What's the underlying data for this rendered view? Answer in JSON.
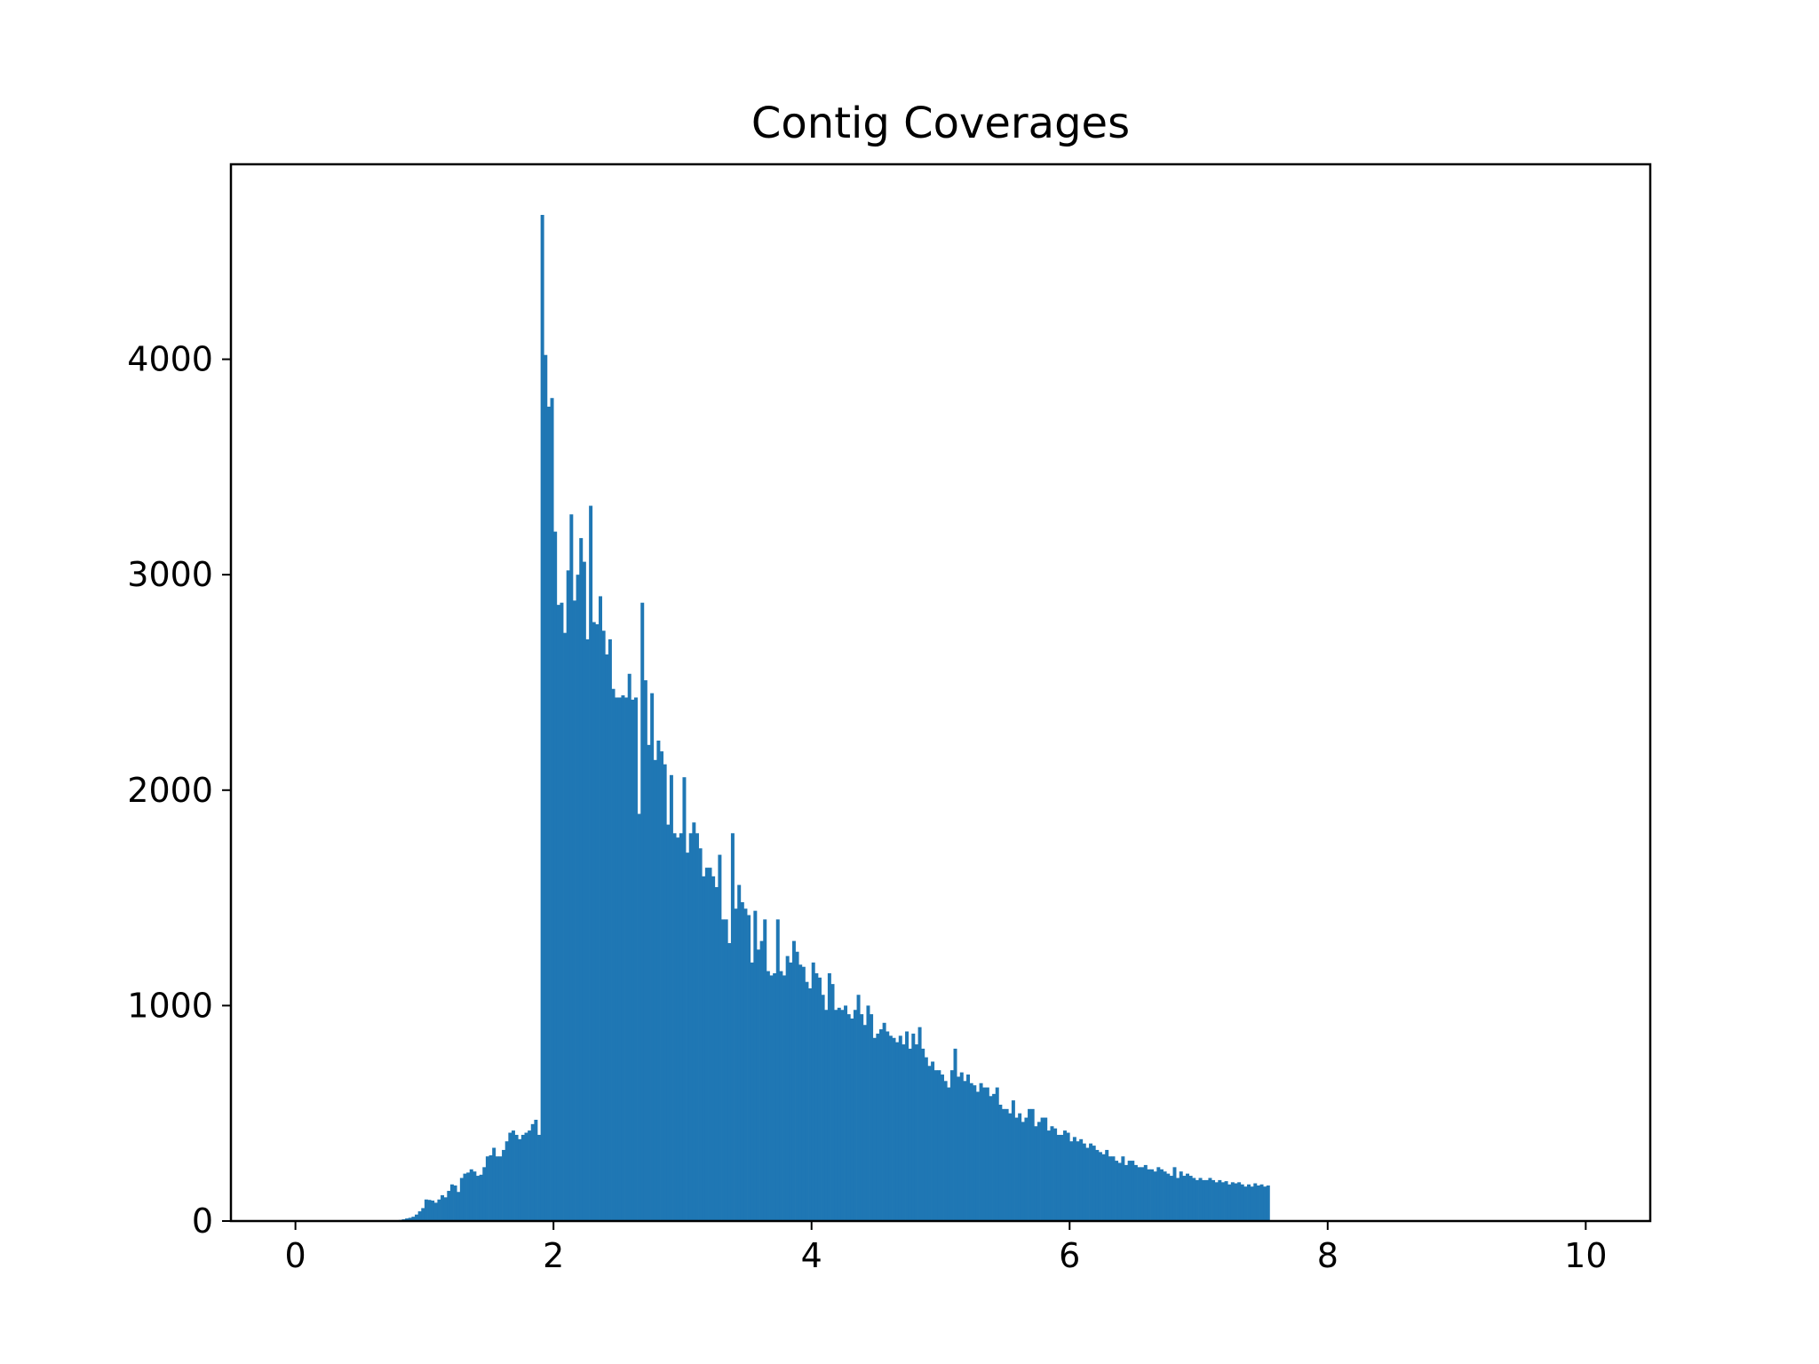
{
  "chart_data": {
    "type": "bar",
    "title": "Contig Coverages",
    "xlabel": "",
    "ylabel": "",
    "grid": false,
    "legend": "none",
    "xlim": [
      -0.5,
      10.5
    ],
    "ylim": [
      0,
      4905
    ],
    "x_ticks": [
      0,
      2,
      4,
      6,
      8,
      10
    ],
    "x_tick_labels": [
      "0",
      "2",
      "4",
      "6",
      "8",
      "10"
    ],
    "y_ticks": [
      0,
      1000,
      2000,
      3000,
      4000
    ],
    "y_tick_labels": [
      "0",
      "1000",
      "2000",
      "3000",
      "4000"
    ],
    "bin_start": 0,
    "bin_width": 0.025,
    "bar_color": "#1f77b4",
    "series": [
      {
        "values": [
          0,
          0,
          0,
          0,
          0,
          0,
          0,
          0,
          0,
          0,
          0,
          0,
          0,
          0,
          0,
          0,
          0,
          0,
          0,
          0,
          0,
          0,
          0,
          0,
          0,
          0,
          0,
          0,
          0,
          0,
          0,
          0,
          5,
          8,
          12,
          15,
          20,
          30,
          45,
          60,
          100,
          98,
          95,
          85,
          100,
          120,
          110,
          140,
          170,
          165,
          135,
          200,
          220,
          225,
          240,
          230,
          210,
          215,
          250,
          300,
          305,
          340,
          300,
          300,
          330,
          370,
          410,
          420,
          400,
          380,
          400,
          410,
          420,
          450,
          470,
          400,
          4670,
          4020,
          3780,
          3820,
          3200,
          2860,
          2870,
          2730,
          3020,
          3280,
          2880,
          3000,
          3170,
          3060,
          2700,
          3320,
          2780,
          2770,
          2900,
          2740,
          2630,
          2700,
          2470,
          2430,
          2430,
          2440,
          2430,
          2540,
          2420,
          2430,
          1890,
          2870,
          2510,
          2210,
          2450,
          2140,
          2230,
          2180,
          2120,
          1840,
          2070,
          1800,
          1780,
          1800,
          2060,
          1710,
          1800,
          1850,
          1800,
          1730,
          1600,
          1640,
          1640,
          1600,
          1550,
          1700,
          1400,
          1400,
          1290,
          1800,
          1450,
          1560,
          1480,
          1450,
          1420,
          1200,
          1440,
          1260,
          1300,
          1400,
          1160,
          1140,
          1150,
          1400,
          1160,
          1140,
          1230,
          1200,
          1300,
          1250,
          1190,
          1180,
          1110,
          1080,
          1200,
          1150,
          1130,
          1050,
          980,
          1150,
          1100,
          980,
          990,
          980,
          1000,
          960,
          940,
          980,
          1050,
          960,
          910,
          1000,
          960,
          850,
          870,
          890,
          920,
          880,
          860,
          850,
          830,
          860,
          820,
          880,
          800,
          870,
          820,
          900,
          800,
          760,
          720,
          740,
          700,
          700,
          680,
          650,
          620,
          700,
          800,
          670,
          690,
          650,
          680,
          640,
          630,
          600,
          640,
          620,
          620,
          580,
          590,
          620,
          540,
          520,
          520,
          500,
          560,
          480,
          500,
          460,
          480,
          520,
          520,
          440,
          460,
          480,
          480,
          420,
          440,
          430,
          400,
          400,
          420,
          410,
          370,
          390,
          370,
          380,
          360,
          340,
          360,
          350,
          330,
          320,
          310,
          330,
          300,
          300,
          280,
          270,
          300,
          260,
          280,
          280,
          260,
          250,
          250,
          260,
          240,
          240,
          230,
          250,
          240,
          230,
          220,
          210,
          250,
          200,
          230,
          210,
          220,
          210,
          200,
          190,
          200,
          190,
          190,
          200,
          190,
          180,
          190,
          180,
          185,
          170,
          180,
          175,
          180,
          170,
          160,
          170,
          160,
          175,
          165,
          170,
          160,
          165
        ]
      }
    ]
  }
}
